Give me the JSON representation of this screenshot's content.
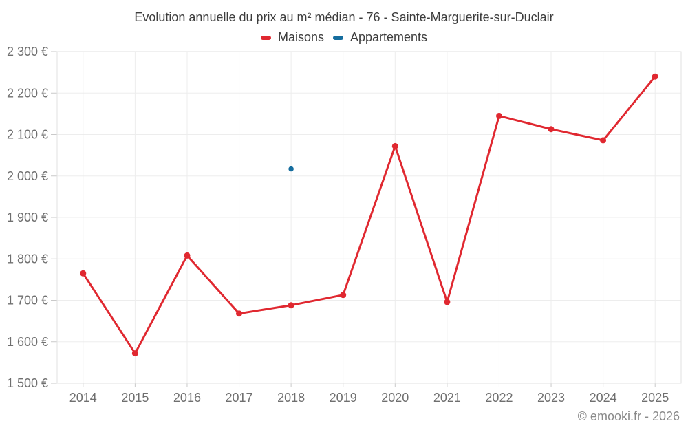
{
  "footer": {
    "credit": "© emooki.fr - 2026"
  },
  "colors": {
    "maisons_red": "#e02830",
    "appartements_blue": "#156d9e",
    "grid": "#ededed",
    "border": "#e2e2e2",
    "tick": "#c9c9c9",
    "title_text": "#3d3d3d",
    "axis_text": "#6f6f6f",
    "credit_text": "#8a8a8a",
    "background": "#ffffff"
  },
  "chart_data": {
    "type": "line",
    "title": "Evolution annuelle du prix au m² médian - 76 - Sainte-Marguerite-sur-Duclair",
    "x_labels": [
      "2014",
      "2015",
      "2016",
      "2017",
      "2018",
      "2019",
      "2020",
      "2021",
      "2022",
      "2023",
      "2024",
      "2025"
    ],
    "series": [
      {
        "name": "Maisons",
        "color": "#e02830",
        "values": [
          1765,
          1572,
          1808,
          1668,
          1688,
          1713,
          2072,
          1696,
          2145,
          2113,
          2086,
          2240
        ]
      },
      {
        "name": "Appartements",
        "color": "#156d9e",
        "values": [
          null,
          null,
          null,
          null,
          2017,
          null,
          null,
          null,
          null,
          null,
          null,
          null
        ]
      }
    ],
    "ylabel": "",
    "xlabel": "",
    "ylim": [
      1500,
      2300
    ],
    "y_tick_values": [
      1500,
      1600,
      1700,
      1800,
      1900,
      2000,
      2100,
      2200,
      2300
    ],
    "y_tick_labels": [
      "1 500 €",
      "1 600 €",
      "1 700 €",
      "1 800 €",
      "1 900 €",
      "2 000 €",
      "2 100 €",
      "2 200 €",
      "2 300 €"
    ],
    "grid": true,
    "legend_position": "top"
  }
}
